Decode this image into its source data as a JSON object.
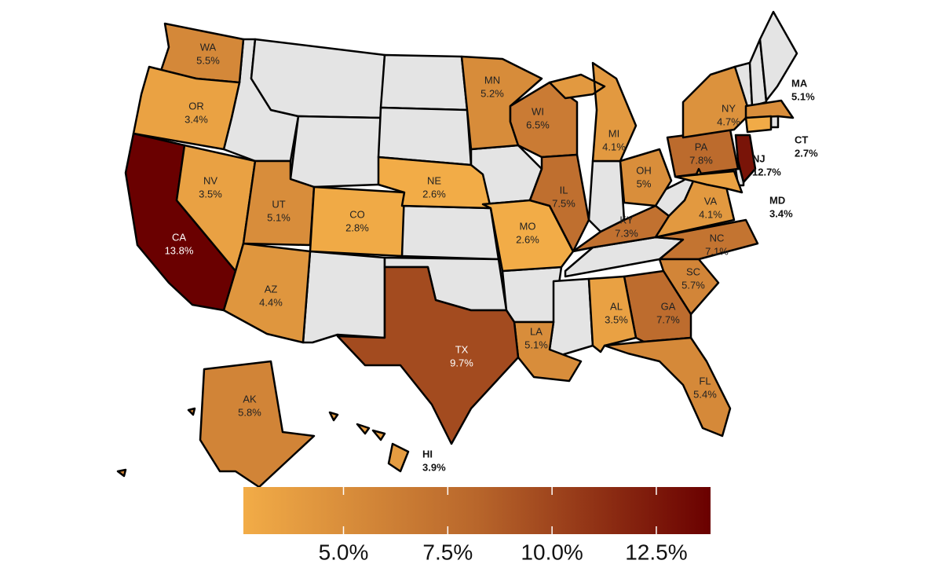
{
  "map": {
    "regions": [
      {
        "id": "WA",
        "label": "5.5%",
        "value": 5.5
      },
      {
        "id": "OR",
        "label": "3.4%",
        "value": 3.4
      },
      {
        "id": "CA",
        "label": "13.8%",
        "value": 13.8
      },
      {
        "id": "NV",
        "label": "3.5%",
        "value": 3.5
      },
      {
        "id": "UT",
        "label": "5.1%",
        "value": 5.1
      },
      {
        "id": "AZ",
        "label": "4.4%",
        "value": 4.4
      },
      {
        "id": "CO",
        "label": "2.8%",
        "value": 2.8
      },
      {
        "id": "NE",
        "label": "2.6%",
        "value": 2.6
      },
      {
        "id": "MN",
        "label": "5.2%",
        "value": 5.2
      },
      {
        "id": "MO",
        "label": "2.6%",
        "value": 2.6
      },
      {
        "id": "WI",
        "label": "6.5%",
        "value": 6.5
      },
      {
        "id": "IL",
        "label": "7.5%",
        "value": 7.5
      },
      {
        "id": "MI",
        "label": "4.1%",
        "value": 4.1
      },
      {
        "id": "OH",
        "label": "5%",
        "value": 5
      },
      {
        "id": "KY",
        "label": "7.3%",
        "value": 7.3
      },
      {
        "id": "PA",
        "label": "7.8%",
        "value": 7.8
      },
      {
        "id": "NY",
        "label": "4.7%",
        "value": 4.7
      },
      {
        "id": "VA",
        "label": "4.1%",
        "value": 4.1
      },
      {
        "id": "NC",
        "label": "7.1%",
        "value": 7.1
      },
      {
        "id": "SC",
        "label": "5.7%",
        "value": 5.7
      },
      {
        "id": "GA",
        "label": "7.7%",
        "value": 7.7
      },
      {
        "id": "AL",
        "label": "3.5%",
        "value": 3.5
      },
      {
        "id": "LA",
        "label": "5.1%",
        "value": 5.1
      },
      {
        "id": "TX",
        "label": "9.7%",
        "value": 9.7
      },
      {
        "id": "FL",
        "label": "5.4%",
        "value": 5.4
      },
      {
        "id": "AK",
        "label": "5.8%",
        "value": 5.8
      },
      {
        "id": "MA",
        "label": "5.1%",
        "value": 5.1
      },
      {
        "id": "CT",
        "label": "2.7%",
        "value": 2.7
      },
      {
        "id": "NJ",
        "label": "12.7%",
        "value": 12.7
      },
      {
        "id": "MD",
        "label": "3.4%",
        "value": 3.4
      },
      {
        "id": "HI",
        "label": "3.9%",
        "value": 3.9
      }
    ],
    "colorbar": {
      "range": [
        2.6,
        13.8
      ],
      "colors": [
        "#f2ac47",
        "#b8662b",
        "#6a0000"
      ],
      "ticks": [
        {
          "value": 5,
          "label": "5.0%"
        },
        {
          "value": 7.5,
          "label": "7.5%"
        },
        {
          "value": 10,
          "label": "10.0%"
        },
        {
          "value": 12.5,
          "label": "12.5%"
        }
      ]
    }
  }
}
